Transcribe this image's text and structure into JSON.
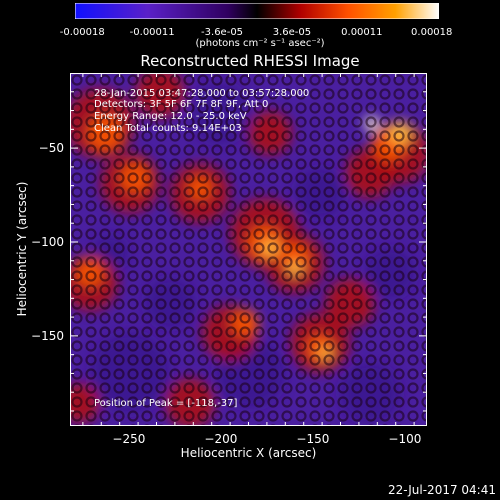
{
  "colorbar": {
    "tick_labels": [
      "-0.00018",
      "-0.00011",
      "-3.6e-05",
      "3.6e-05",
      "0.00011",
      "0.00018"
    ],
    "units": "(photons cm⁻² s⁻¹ asec⁻²)",
    "colors": [
      "#1010ff",
      "#5a20c8",
      "#300060",
      "#000000",
      "#b00000",
      "#ff5000",
      "#ffa000",
      "#ffffff"
    ]
  },
  "chart_data": {
    "type": "heatmap",
    "title": "Reconstructed RHESSI Image",
    "xlabel": "Heliocentric X (arcsec)",
    "ylabel": "Heliocentric Y (arcsec)",
    "xlim": [
      -282,
      -88
    ],
    "ylim": [
      -198,
      -10
    ],
    "xticks": [
      -250,
      -200,
      -150,
      -100
    ],
    "yticks": [
      -50,
      -100,
      -150
    ],
    "clim": [
      -0.00018,
      0.00018
    ],
    "peak": [
      -118,
      -37
    ],
    "annotations": [
      "28-Jan-2015 03:47:28.000 to 03:57:28.000",
      "Detectors: 3F 5F 6F 7F 8F 9F, Att 0",
      "Energy Range: 12.0 - 25.0 keV",
      "Clean    Total counts: 9.14E+03"
    ],
    "peak_label": "Position of Peak = [-118,-37]"
  },
  "footer": {
    "timestamp": "22-Jul-2017 04:41"
  }
}
